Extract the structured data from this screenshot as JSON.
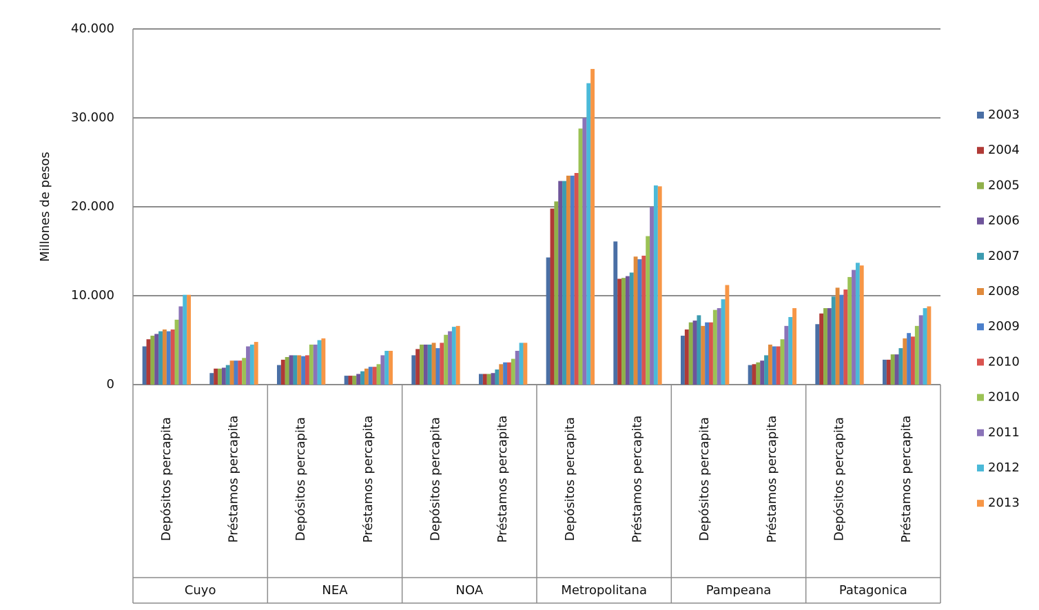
{
  "chart_data": {
    "type": "bar",
    "y_label": "Millones de pesos",
    "categories": [
      "Depósitos percapita",
      "Préstamos percapita",
      "Depósitos percapita",
      "Préstamos percapita",
      "Depósitos percapita",
      "Préstamos percapita",
      "Depósitos percapita",
      "Préstamos percapita",
      "Depósitos percapita",
      "Préstamos percapita",
      "Depósitos percapita",
      "Préstamos percapita"
    ],
    "groups": [
      "Cuyo",
      "NEA",
      "NOA",
      "Metropolitana",
      "Pampeana",
      "Patagonica"
    ],
    "ylim": [
      0,
      40000
    ],
    "yticks": [
      0,
      {
        "value": 10000,
        "label": "10.000"
      },
      {
        "value": 20000,
        "label": "20.000"
      },
      {
        "value": 30000,
        "label": "30.000"
      },
      {
        "value": 40000,
        "label": "40.000"
      }
    ],
    "grid": true,
    "legend": "right",
    "series": [
      {
        "name": "2003",
        "color": "#4a6fa5",
        "values": [
          4300,
          1300,
          2200,
          1000,
          3300,
          1200,
          14300,
          16100,
          5500,
          2200,
          6800,
          2800
        ]
      },
      {
        "name": "2004",
        "color": "#b03a36",
        "values": [
          5100,
          1800,
          2800,
          1000,
          4000,
          1200,
          19800,
          11900,
          6200,
          2300,
          8000,
          2800
        ]
      },
      {
        "name": "2005",
        "color": "#8fb04a",
        "values": [
          5500,
          1800,
          3100,
          1000,
          4500,
          1200,
          20600,
          12000,
          7000,
          2500,
          8600,
          3400
        ]
      },
      {
        "name": "2006",
        "color": "#6e549a",
        "values": [
          5700,
          1900,
          3300,
          1200,
          4500,
          1300,
          22900,
          12200,
          7200,
          2700,
          8600,
          3400
        ]
      },
      {
        "name": "2007",
        "color": "#3c9bb0",
        "values": [
          6000,
          2200,
          3300,
          1500,
          4500,
          1700,
          22900,
          12600,
          7800,
          3300,
          9900,
          4100
        ]
      },
      {
        "name": "2008",
        "color": "#e08a3c",
        "values": [
          6200,
          2700,
          3300,
          1800,
          4700,
          2300,
          23500,
          14400,
          6600,
          4500,
          10900,
          5200
        ]
      },
      {
        "name": "2009",
        "color": "#4b7fcb",
        "values": [
          6000,
          2700,
          3200,
          2000,
          4100,
          2500,
          23500,
          14100,
          7000,
          4300,
          10100,
          5800
        ]
      },
      {
        "name": "2010",
        "color": "#d9534f",
        "values": [
          6200,
          2700,
          3300,
          2000,
          4700,
          2500,
          23800,
          14500,
          7000,
          4300,
          10700,
          5400
        ]
      },
      {
        "name": "2010",
        "color": "#9bc255",
        "values": [
          7300,
          3000,
          4500,
          2300,
          5600,
          2900,
          28800,
          16700,
          8400,
          5100,
          12100,
          6600
        ]
      },
      {
        "name": "2011",
        "color": "#8a73b8",
        "values": [
          8800,
          4300,
          4500,
          3300,
          6000,
          3800,
          30000,
          20000,
          8600,
          6600,
          12900,
          7800
        ]
      },
      {
        "name": "2012",
        "color": "#4bb9d8",
        "values": [
          10100,
          4500,
          5000,
          3800,
          6500,
          4700,
          33900,
          22400,
          9600,
          7600,
          13700,
          8600
        ]
      },
      {
        "name": "2013",
        "color": "#f79646",
        "values": [
          10100,
          4800,
          5200,
          3800,
          6600,
          4700,
          35500,
          22300,
          11200,
          8600,
          13400,
          8800
        ]
      }
    ]
  }
}
